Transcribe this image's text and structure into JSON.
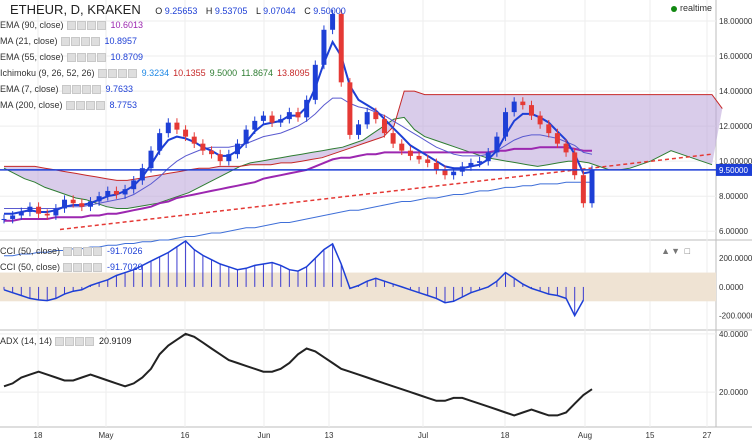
{
  "header": {
    "symbol": "ETHEUR, D, KRAKEN",
    "o_label": "O",
    "o": "9.25653",
    "h_label": "H",
    "h": "9.53705",
    "l_label": "L",
    "l": "9.07044",
    "c_label": "C",
    "c": "9.50000",
    "realtime": "realtime"
  },
  "legend": [
    {
      "name": "EMA (90, close)",
      "values": [
        "10.6013"
      ],
      "colors": [
        "#9c27b0"
      ]
    },
    {
      "name": "MA (21, close)",
      "values": [
        "10.8957"
      ],
      "colors": [
        "#1d3fd6"
      ]
    },
    {
      "name": "EMA (55, close)",
      "values": [
        "10.8709"
      ],
      "colors": [
        "#1d3fd6"
      ]
    },
    {
      "name": "Ichimoku (9, 26, 52, 26)",
      "values": [
        "9.3234",
        "10.1355",
        "9.5000",
        "11.8674",
        "13.8095"
      ],
      "colors": [
        "#1e88e5",
        "#c62828",
        "#2e7d32",
        "#2e7d32",
        "#c62828"
      ]
    },
    {
      "name": "EMA (7, close)",
      "values": [
        "9.7633"
      ],
      "colors": [
        "#1d3fd6"
      ]
    },
    {
      "name": "MA (200, close)",
      "values": [
        "8.7753"
      ],
      "colors": [
        "#1d3fd6"
      ]
    }
  ],
  "cci_legend": [
    {
      "name": "CCI (50, close)",
      "value": "-91.7026"
    },
    {
      "name": "CCI (50, close)",
      "value": "-91.7026"
    }
  ],
  "adx_legend": {
    "name": "ADX (14, 14)",
    "value": "20.9109"
  },
  "price_tag": "9.50000",
  "colors": {
    "price_line": "#1d3fd6",
    "ema90": "#9c27b0",
    "cloud": "#b9a3d8",
    "trend": "#e53935",
    "up": "#1d3fd6",
    "down": "#e53935",
    "cci_band": "#efe3d3"
  },
  "chart_data": [
    {
      "type": "candlestick",
      "title": "ETHEUR, D, KRAKEN",
      "x_ticks": [
        "18",
        "May",
        "16",
        "Jun",
        "13",
        "Jul",
        "18",
        "Aug",
        "15",
        "27"
      ],
      "y_ticks": [
        "18.00000",
        "16.00000",
        "14.00000",
        "12.00000",
        "10.00000",
        "8.00000",
        "6.00000"
      ],
      "ylim": [
        5.5,
        19.2
      ],
      "last_price": 9.5,
      "series": [
        {
          "name": "Price",
          "values": [
            6.7,
            6.9,
            7.1,
            7.4,
            7.0,
            6.9,
            7.3,
            7.8,
            7.6,
            7.4,
            7.7,
            8.0,
            8.3,
            8.1,
            8.4,
            8.9,
            9.6,
            10.6,
            11.6,
            12.2,
            11.8,
            11.4,
            11.0,
            10.6,
            10.4,
            10.0,
            10.4,
            11.0,
            11.8,
            12.3,
            12.6,
            12.2,
            12.4,
            12.8,
            12.5,
            13.5,
            15.5,
            17.5,
            18.4,
            14.5,
            11.5,
            12.1,
            12.8,
            12.4,
            11.6,
            11.0,
            10.6,
            10.3,
            10.1,
            9.9,
            9.5,
            9.2,
            9.4,
            9.7,
            9.9,
            10.0,
            10.5,
            11.4,
            12.8,
            13.4,
            13.2,
            12.6,
            12.1,
            11.6,
            11.0,
            10.5,
            9.2,
            7.6,
            9.5
          ]
        },
        {
          "name": "EMA (7, close)",
          "values": [
            7.0,
            7.0,
            7.1,
            7.2,
            7.1,
            7.1,
            7.2,
            7.4,
            7.5,
            7.5,
            7.6,
            7.8,
            8.0,
            8.1,
            8.3,
            8.6,
            9.1,
            9.8,
            10.6,
            11.2,
            11.4,
            11.3,
            11.1,
            10.8,
            10.6,
            10.3,
            10.3,
            10.6,
            11.1,
            11.7,
            12.1,
            12.2,
            12.3,
            12.6,
            12.6,
            13.1,
            14.2,
            15.6,
            16.8,
            16.0,
            14.3,
            13.5,
            13.2,
            12.9,
            12.4,
            11.9,
            11.4,
            10.9,
            10.6,
            10.3,
            10.0,
            9.7,
            9.6,
            9.6,
            9.7,
            9.8,
            10.1,
            10.6,
            11.5,
            12.3,
            12.7,
            12.7,
            12.5,
            12.2,
            11.7,
            11.2,
            10.4,
            9.3,
            9.4
          ]
        },
        {
          "name": "MA (21, close)",
          "values": [
            7.3,
            7.3,
            7.3,
            7.3,
            7.3,
            7.3,
            7.3,
            7.4,
            7.4,
            7.4,
            7.5,
            7.6,
            7.7,
            7.8,
            7.9,
            8.1,
            8.4,
            8.7,
            9.1,
            9.6,
            10.0,
            10.3,
            10.5,
            10.7,
            10.8,
            10.8,
            10.8,
            10.9,
            11.0,
            11.2,
            11.4,
            11.5,
            11.6,
            11.8,
            12.0,
            12.3,
            12.7,
            13.2,
            13.6,
            13.6,
            13.3,
            13.1,
            13.0,
            12.8,
            12.6,
            12.3,
            12.0,
            11.7,
            11.4,
            11.1,
            10.8,
            10.6,
            10.4,
            10.3,
            10.3,
            10.3,
            10.4,
            10.6,
            10.9,
            11.2,
            11.4,
            11.5,
            11.5,
            11.4,
            11.3,
            11.1,
            10.9,
            10.5,
            10.4
          ]
        },
        {
          "name": "EMA (90, close)",
          "values": [
            6.6,
            6.6,
            6.7,
            6.7,
            6.7,
            6.7,
            6.8,
            6.8,
            6.8,
            6.8,
            6.9,
            6.9,
            7.0,
            7.0,
            7.1,
            7.2,
            7.3,
            7.4,
            7.6,
            7.7,
            7.9,
            8.0,
            8.1,
            8.2,
            8.3,
            8.4,
            8.5,
            8.6,
            8.7,
            8.8,
            9.0,
            9.1,
            9.2,
            9.3,
            9.4,
            9.5,
            9.7,
            9.9,
            10.1,
            10.2,
            10.2,
            10.3,
            10.4,
            10.4,
            10.5,
            10.5,
            10.5,
            10.5,
            10.5,
            10.5,
            10.5,
            10.5,
            10.5,
            10.5,
            10.5,
            10.5,
            10.5,
            10.6,
            10.6,
            10.7,
            10.7,
            10.7,
            10.8,
            10.8,
            10.8,
            10.8,
            10.7,
            10.6,
            10.6
          ]
        },
        {
          "name": "MA (200, close)",
          "values": [
            4.6,
            4.6,
            4.7,
            4.7,
            4.8,
            4.8,
            4.9,
            4.9,
            5.0,
            5.0,
            5.1,
            5.1,
            5.2,
            5.2,
            5.3,
            5.3,
            5.4,
            5.4,
            5.5,
            5.5,
            5.6,
            5.7,
            5.7,
            5.8,
            5.9,
            5.9,
            6.0,
            6.1,
            6.2,
            6.2,
            6.3,
            6.4,
            6.5,
            6.5,
            6.6,
            6.7,
            6.8,
            6.9,
            7.0,
            7.1,
            7.2,
            7.2,
            7.3,
            7.4,
            7.5,
            7.6,
            7.7,
            7.7,
            7.8,
            7.9,
            7.9,
            8.0,
            8.1,
            8.1,
            8.2,
            8.3,
            8.3,
            8.4,
            8.5,
            8.5,
            8.6,
            8.6,
            8.7,
            8.7,
            8.7,
            8.8,
            8.8,
            8.8,
            8.8
          ]
        },
        {
          "name": "Ichimoku Span A",
          "values": [
            9.6,
            9.3,
            9.0,
            8.8,
            8.5,
            8.3,
            8.1,
            7.9,
            7.8,
            7.6,
            7.4,
            7.3,
            7.3,
            7.4,
            7.5,
            7.6,
            7.8,
            8.0,
            8.2,
            8.5,
            8.8,
            9.1,
            9.4,
            9.7,
            9.9,
            10.0,
            10.1,
            10.2,
            10.3,
            10.4,
            10.5,
            10.6,
            10.7,
            10.8,
            11.0,
            11.2,
            11.6,
            12.0,
            12.4,
            12.5,
            11.8,
            11.4,
            11.2,
            11.0,
            10.8,
            10.6,
            10.4,
            10.2,
            10.1,
            10.0,
            9.9,
            9.8,
            9.7,
            9.8,
            9.9,
            10.0,
            10.0,
            9.9,
            9.7,
            9.5,
            9.5,
            9.6,
            9.8,
            10.0,
            10.3,
            10.6,
            10.4,
            10.2,
            10.0,
            9.8
          ]
        },
        {
          "name": "Ichimoku Span B",
          "values": [
            9.7,
            9.7,
            9.7,
            9.7,
            9.6,
            9.5,
            9.4,
            9.3,
            9.2,
            9.1,
            9.0,
            8.9,
            8.9,
            9.0,
            9.1,
            9.2,
            9.3,
            9.4,
            9.5,
            9.6,
            9.6,
            9.7,
            9.7,
            9.7,
            9.8,
            9.8,
            9.8,
            9.9,
            9.9,
            10.0,
            10.1,
            10.2,
            10.4,
            10.6,
            10.8,
            11.0,
            11.2,
            11.4,
            12.0,
            14.0,
            14.0,
            13.8,
            13.8,
            13.8,
            13.8,
            13.8,
            13.8,
            13.8,
            13.8,
            13.8,
            13.8,
            13.8,
            13.8,
            13.8,
            13.8,
            13.8,
            13.8,
            13.8,
            13.8,
            13.8,
            13.8,
            13.8,
            13.8,
            13.8,
            13.8,
            13.8,
            13.8,
            13.8,
            13.8,
            13.8,
            13.0
          ]
        }
      ]
    },
    {
      "type": "bar",
      "title": "CCI (50, close)",
      "y_ticks": [
        "200.0000",
        "0.0000",
        "-200.0000"
      ],
      "ylim": [
        -300,
        320
      ],
      "series": [
        {
          "name": "CCI (50, close)",
          "values": [
            -20,
            -40,
            -60,
            -80,
            -90,
            -95,
            -80,
            -50,
            -30,
            -20,
            10,
            30,
            50,
            80,
            100,
            120,
            150,
            180,
            210,
            240,
            280,
            320,
            260,
            220,
            190,
            160,
            140,
            120,
            130,
            150,
            160,
            170,
            150,
            120,
            110,
            140,
            200,
            260,
            300,
            160,
            -10,
            10,
            40,
            60,
            40,
            20,
            0,
            -20,
            -40,
            -60,
            -80,
            -110,
            -100,
            -70,
            -40,
            -20,
            0,
            40,
            100,
            60,
            20,
            -10,
            -30,
            -50,
            -60,
            -80,
            -200,
            -92
          ]
        }
      ]
    },
    {
      "type": "line",
      "title": "ADX (14, 14)",
      "y_ticks": [
        "40.0000",
        "20.0000"
      ],
      "ylim": [
        8,
        41
      ],
      "series": [
        {
          "name": "ADX (14, 14)",
          "values": [
            22,
            23,
            25,
            26,
            27,
            26,
            25,
            24,
            24,
            25,
            26,
            25,
            24,
            23,
            22,
            23,
            25,
            28,
            33,
            36,
            38,
            40,
            39,
            37,
            35,
            33,
            31,
            30,
            29,
            28,
            27,
            27,
            28,
            30,
            33,
            35,
            34,
            32,
            30,
            28,
            27,
            26,
            25,
            24,
            23,
            22,
            21,
            20,
            19,
            18,
            17,
            17,
            18,
            18,
            17,
            16,
            15,
            14,
            13,
            12,
            13,
            14,
            13,
            12,
            12,
            13,
            16,
            19,
            21
          ]
        }
      ]
    }
  ],
  "x_axis": {
    "ticks": [
      "18",
      "May",
      "16",
      "Jun",
      "13",
      "Jul",
      "18",
      "Aug",
      "15",
      "27"
    ]
  }
}
